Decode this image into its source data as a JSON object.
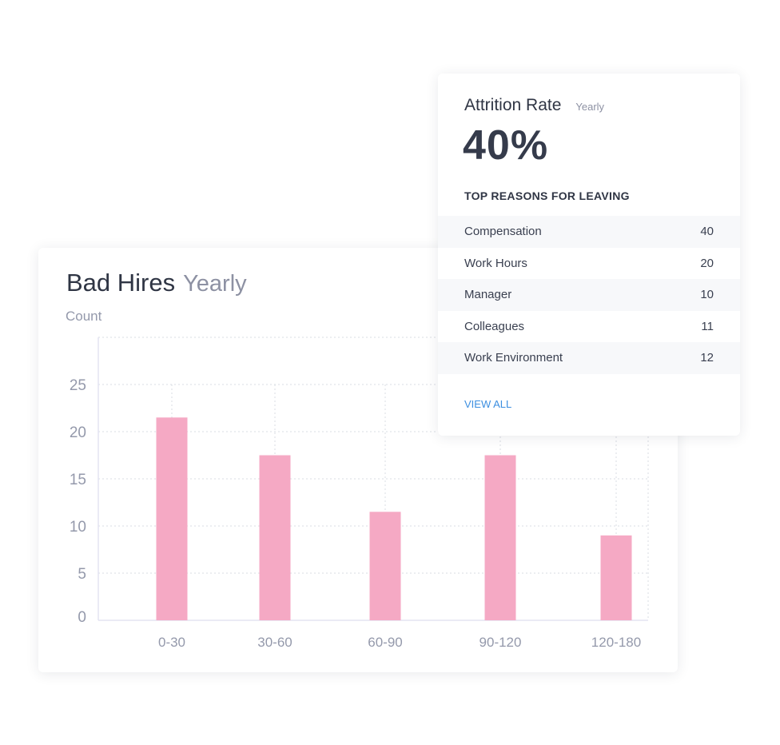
{
  "bad_hires": {
    "title": "Bad Hires",
    "period": "Yearly",
    "ylabel": "Count"
  },
  "chart_data": {
    "type": "bar",
    "title": "Bad Hires",
    "ylabel": "Count",
    "categories": [
      "0-30",
      "30-60",
      "60-90",
      "90-120",
      "120-180"
    ],
    "values": [
      21.5,
      17.5,
      11.5,
      17.5,
      9
    ],
    "yticks": [
      0,
      5,
      10,
      15,
      20,
      25
    ],
    "ylim": [
      0,
      30
    ],
    "grid": true,
    "bar_color": "#f5a9c4"
  },
  "attrition": {
    "title": "Attrition Rate",
    "period": "Yearly",
    "value": "40%",
    "reasons_heading": "TOP REASONS FOR LEAVING",
    "reasons": [
      {
        "label": "Compensation",
        "count": "40"
      },
      {
        "label": "Work Hours",
        "count": "20"
      },
      {
        "label": "Manager",
        "count": "10"
      },
      {
        "label": "Colleagues",
        "count": "11"
      },
      {
        "label": "Work Environment",
        "count": "12"
      }
    ],
    "view_all": "VIEW ALL"
  }
}
